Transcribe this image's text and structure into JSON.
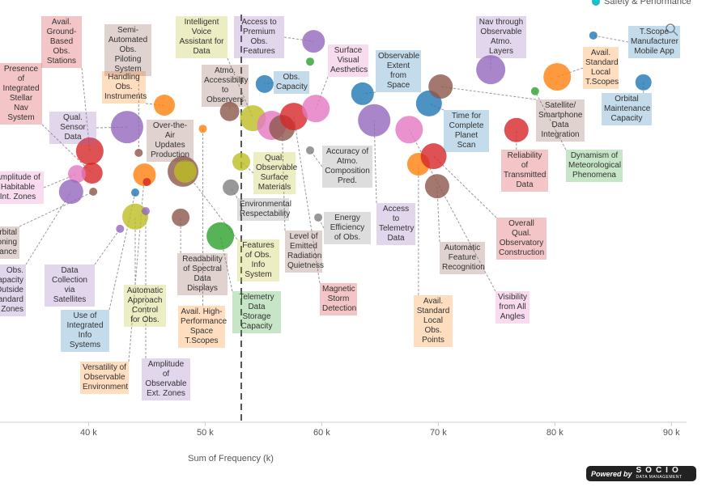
{
  "chart_data": {
    "type": "bubble",
    "x_label": "Sum of Frequency (k)",
    "xlim": [
      32.4,
      91.3
    ],
    "ylim": [
      0,
      100
    ],
    "xticks": [
      {
        "value": 40,
        "label": "40 k"
      },
      {
        "value": 50,
        "label": "50 k"
      },
      {
        "value": 60,
        "label": "60 k"
      },
      {
        "value": 70,
        "label": "70 k"
      },
      {
        "value": 80,
        "label": "80 k"
      },
      {
        "value": 90,
        "label": "90 k"
      }
    ],
    "xline": 53.1,
    "legend": [
      {
        "name": "Safety & Performance",
        "color": "#17becf"
      }
    ],
    "legend_position": "top-right",
    "points": [
      {
        "x": 59.3,
        "y": 90.2,
        "size": 14,
        "color": "#9467bd",
        "label": "Access to Premium Obs. Features"
      },
      {
        "x": 59.0,
        "y": 85.4,
        "size": 5,
        "color": "#2ca02c"
      },
      {
        "x": 55.1,
        "y": 80.1,
        "size": 11,
        "color": "#1f77b4",
        "label": "Obs. Capacity"
      },
      {
        "x": 52.1,
        "y": 73.6,
        "size": 12,
        "color": "#8c564b",
        "label": "Atmo. Accessibility to Observers"
      },
      {
        "x": 54.1,
        "y": 72.0,
        "size": 16,
        "color": "#bcbd22",
        "label": "Intelligent Voice Assistant for Data"
      },
      {
        "x": 55.7,
        "y": 70.3,
        "size": 18,
        "color": "#e377c2"
      },
      {
        "x": 56.6,
        "y": 69.7,
        "size": 16,
        "color": "#8c564b",
        "label": "Level of Emitted Radiation Quietness"
      },
      {
        "x": 57.6,
        "y": 72.4,
        "size": 17,
        "color": "#d62728",
        "label": "Magnetic Storm Detection"
      },
      {
        "x": 59.5,
        "y": 74.3,
        "size": 17,
        "color": "#e377c2",
        "label": "Surface Visual Aesthetics"
      },
      {
        "x": 59.0,
        "y": 64.4,
        "size": 5,
        "color": "#7f7f7f",
        "label": "Accuracy of Atmo. Composition Pred."
      },
      {
        "x": 59.7,
        "y": 48.5,
        "size": 5,
        "color": "#7f7f7f",
        "label": "Energy Efficiency of Obs."
      },
      {
        "x": 53.1,
        "y": 61.7,
        "size": 11,
        "color": "#bcbd22",
        "label": "Qual. Observable Surface Materials"
      },
      {
        "x": 52.2,
        "y": 55.6,
        "size": 10,
        "color": "#7f7f7f",
        "label": "Environmental Respectability"
      },
      {
        "x": 51.3,
        "y": 44.1,
        "size": 17,
        "color": "#2ca02c",
        "label": "Telemetry Data Storage Capacity"
      },
      {
        "x": 49.8,
        "y": 69.5,
        "size": 5,
        "color": "#ff7f0e",
        "label": "Avail. High-Performance Space T.Scopes"
      },
      {
        "x": 48.1,
        "y": 59.4,
        "size": 19,
        "color": "#8c564b",
        "label": "Over-the-Air Updates Production"
      },
      {
        "x": 48.3,
        "y": 59.4,
        "size": 14,
        "color": "#bcbd22",
        "label": "Features of Obs. Info System"
      },
      {
        "x": 47.9,
        "y": 48.5,
        "size": 11,
        "color": "#8c564b",
        "label": "Readability of Spectral Data Displays"
      },
      {
        "x": 46.5,
        "y": 75.1,
        "size": 13,
        "color": "#ff7f0e",
        "label": "Handling Obs. Instruments"
      },
      {
        "x": 43.3,
        "y": 69.9,
        "size": 20,
        "color": "#9467bd",
        "label": "Qual. Sensor Data"
      },
      {
        "x": 44.3,
        "y": 63.8,
        "size": 5,
        "color": "#8c564b",
        "label": "Semi-Automated Obs. Piloting System"
      },
      {
        "x": 44.8,
        "y": 58.6,
        "size": 14,
        "color": "#ff7f0e",
        "label": "Versatility of Observable Environment"
      },
      {
        "x": 45.0,
        "y": 56.9,
        "size": 5,
        "color": "#d62728"
      },
      {
        "x": 44.0,
        "y": 54.4,
        "size": 5,
        "color": "#1f77b4",
        "label": "Use of Integrated Info Systems"
      },
      {
        "x": 44.0,
        "y": 48.7,
        "size": 16,
        "color": "#bcbd22",
        "label": "Automatic Approach Control for Obs."
      },
      {
        "x": 44.9,
        "y": 50.0,
        "size": 5,
        "color": "#9467bd",
        "label": "Amplitude of Observable Ext. Zones"
      },
      {
        "x": 42.7,
        "y": 45.8,
        "size": 5,
        "color": "#9467bd",
        "label": "Data Collection via Satellites"
      },
      {
        "x": 40.1,
        "y": 64.2,
        "size": 17,
        "color": "#d62728",
        "label": "Avail. Ground-Based Obs. Stations"
      },
      {
        "x": 40.3,
        "y": 59.0,
        "size": 13,
        "color": "#d62728",
        "label": "Presence of Integrated Stellar Nav System"
      },
      {
        "x": 39.0,
        "y": 58.8,
        "size": 11,
        "color": "#e377c2",
        "label": "Amplitude of Habitable Int. Zones"
      },
      {
        "x": 38.5,
        "y": 54.6,
        "size": 15,
        "color": "#9467bd",
        "label": "Obs. Capacity Outside Standard Zones"
      },
      {
        "x": 40.4,
        "y": 54.6,
        "size": 5,
        "color": "#8c564b",
        "label": "Orbital Positioning Assistance"
      },
      {
        "x": 63.5,
        "y": 77.8,
        "size": 14,
        "color": "#1f77b4",
        "label": "Observable Extent from Space"
      },
      {
        "x": 64.5,
        "y": 71.5,
        "size": 20,
        "color": "#9467bd",
        "label": "Access to Telemetry Data"
      },
      {
        "x": 67.5,
        "y": 69.3,
        "size": 17,
        "color": "#e377c2",
        "label": "Visibility from All Angles"
      },
      {
        "x": 68.3,
        "y": 61.1,
        "size": 14,
        "color": "#ff7f0e",
        "label": "Avail. Standard Local Obs. Points"
      },
      {
        "x": 69.6,
        "y": 63.0,
        "size": 16,
        "color": "#d62728",
        "label": "Overall Qual. Observatory Construction"
      },
      {
        "x": 69.9,
        "y": 55.9,
        "size": 15,
        "color": "#8c564b",
        "label": "Automatic Feature Recognition"
      },
      {
        "x": 69.2,
        "y": 75.5,
        "size": 16,
        "color": "#1f77b4",
        "label": "Time for Complete Planet Scan"
      },
      {
        "x": 70.2,
        "y": 79.5,
        "size": 15,
        "color": "#8c564b",
        "label": "Satellite/ Smartphone Data Integration"
      },
      {
        "x": 74.5,
        "y": 83.5,
        "size": 18,
        "color": "#9467bd",
        "label": "Nav through Observable Atmo. Layers"
      },
      {
        "x": 76.7,
        "y": 69.2,
        "size": 15,
        "color": "#d62728",
        "label": "Reliability of Transmitted Data"
      },
      {
        "x": 80.2,
        "y": 81.8,
        "size": 17,
        "color": "#ff7f0e",
        "label": "Avail. Standard Local T.Scopes"
      },
      {
        "x": 78.3,
        "y": 78.4,
        "size": 5,
        "color": "#2ca02c",
        "label": "Dynamism of Meteorological Phenomena"
      },
      {
        "x": 83.3,
        "y": 91.6,
        "size": 5,
        "color": "#1f77b4",
        "label": "T.Scope Manufacturer Mobile App"
      },
      {
        "x": 87.6,
        "y": 80.5,
        "size": 10,
        "color": "#1f77b4",
        "label": "Orbital Maintenance Capacity"
      }
    ]
  },
  "footer": {
    "powered_by": "Powered by",
    "brand": "SOCIO",
    "tagline": "DATA MANAGEMENT"
  }
}
